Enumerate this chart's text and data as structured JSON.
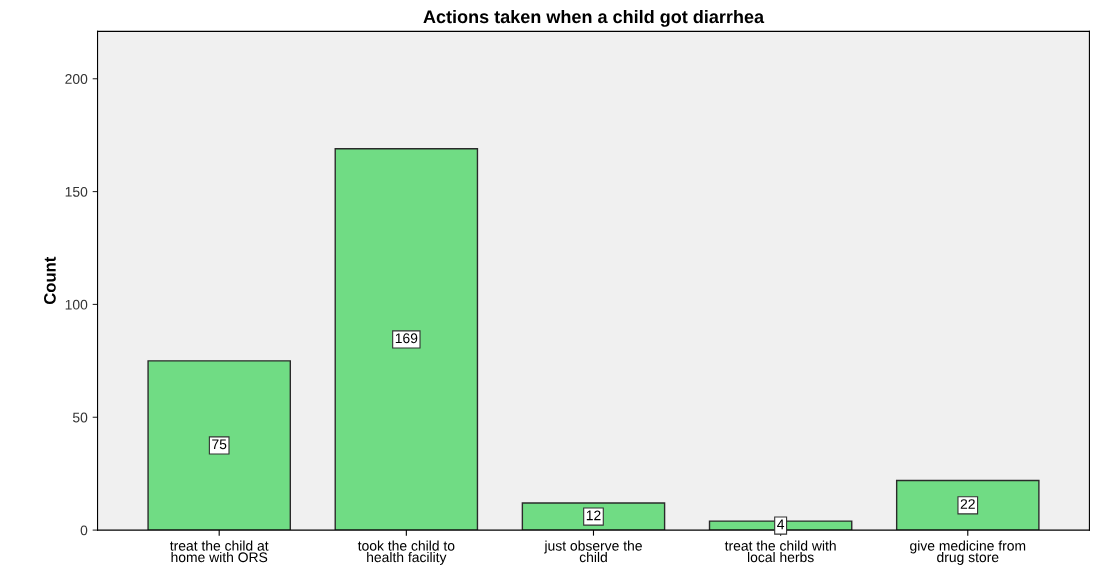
{
  "chart_data": {
    "type": "bar",
    "title": "Actions taken when a child got diarrhea",
    "ylabel": "Count",
    "categories": [
      "treat the child at\nhome with ORS",
      "took the child to\nhealth facility",
      "just observe the\nchild",
      "treat the child with\nlocal herbs",
      "give medicine from\ndrug store"
    ],
    "values": [
      75,
      169,
      12,
      4,
      22
    ],
    "color": "#70dc84",
    "ylim": [
      0,
      221
    ],
    "yticks": [
      0,
      50,
      100,
      150,
      200
    ],
    "grid": false,
    "data_labels": true
  }
}
